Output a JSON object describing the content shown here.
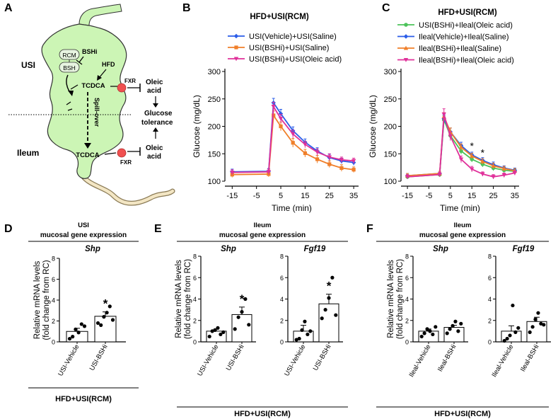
{
  "panels": {
    "A": {
      "letter": "A",
      "usi": "USI",
      "ileum": "Ileum",
      "rcm": "RCM",
      "bsh": "BSH",
      "bshi": "BSHi",
      "hfd": "HFD",
      "tcdca_top": "TCDCA",
      "tcdca_bottom": "TCDCA",
      "fxr_top": "FXR",
      "fxr_bottom": "FXR",
      "spill_over": "Spill-over",
      "oleic_top_1": "Oleic",
      "oleic_top_2": "acid",
      "glucose_1": "Glucose",
      "glucose_2": "tolerance",
      "oleic_bottom_1": "Oleic",
      "oleic_bottom_2": "acid",
      "colors": {
        "tissue": "#ccf5b5",
        "fxr": "#f05050",
        "tail": "#f3e6c4"
      }
    },
    "B": {
      "letter": "B"
    },
    "C": {
      "letter": "C"
    },
    "D": {
      "letter": "D",
      "head1": "USI",
      "head2": "mucosal gene expression",
      "footer": "HFD+USI(RCM)"
    },
    "E": {
      "letter": "E",
      "head1": "Ileum",
      "head2": "mucosal gene expression",
      "footer": "HFD+USI(RCM)"
    },
    "F": {
      "letter": "F",
      "head1": "Ileum",
      "head2": "mucosal gene expression",
      "footer": "HFD+USI(RCM)"
    }
  },
  "chart_data": [
    {
      "id": "B",
      "type": "line",
      "title": "HFD+USI(RCM)",
      "xlabel": "Time (min)",
      "ylabel": "Glucose (mg/dL)",
      "xlim": [
        -18,
        37
      ],
      "ylim": [
        100,
        300
      ],
      "xticks": [
        "-15",
        "-5",
        "5",
        "15",
        "25",
        "35"
      ],
      "xtick_values": [
        -15,
        -5,
        5,
        15,
        25,
        35
      ],
      "yticks": [
        "100",
        "150",
        "200",
        "250",
        "300"
      ],
      "ytick_values": [
        100,
        150,
        200,
        250,
        300
      ],
      "x": [
        -15,
        0,
        2,
        5,
        10,
        15,
        20,
        25,
        30,
        35
      ],
      "series": [
        {
          "name": "USI(Vehicle)+USI(Saline)",
          "color": "#2a5ce8",
          "marker": "diamond",
          "values": [
            117,
            118,
            243,
            223,
            192,
            171,
            155,
            143,
            137,
            134
          ],
          "errors": [
            5,
            5,
            8,
            8,
            7,
            6,
            6,
            6,
            5,
            5
          ]
        },
        {
          "name": "USI(BSHi)+USI(Saline)",
          "color": "#f07f2a",
          "marker": "square",
          "values": [
            112,
            113,
            220,
            200,
            170,
            151,
            140,
            131,
            124,
            121
          ],
          "errors": [
            5,
            5,
            8,
            8,
            8,
            7,
            7,
            6,
            6,
            5
          ]
        },
        {
          "name": "USI(BSHi)+USI(Oleic acid)",
          "color": "#e0309a",
          "marker": "triangle-down",
          "values": [
            116,
            117,
            236,
            214,
            186,
            167,
            153,
            144,
            139,
            137
          ],
          "errors": [
            5,
            5,
            8,
            8,
            7,
            6,
            6,
            6,
            5,
            5
          ]
        }
      ],
      "annotations": []
    },
    {
      "id": "C",
      "type": "line",
      "title": "HFD+USI(RCM)",
      "xlabel": "Time (min)",
      "ylabel": "Glucose (mg/dL)",
      "xlim": [
        -18,
        37
      ],
      "ylim": [
        100,
        300
      ],
      "xticks": [
        "-15",
        "-5",
        "5",
        "15",
        "25",
        "35"
      ],
      "xtick_values": [
        -15,
        -5,
        5,
        15,
        25,
        35
      ],
      "yticks": [
        "100",
        "150",
        "200",
        "250",
        "300"
      ],
      "ytick_values": [
        100,
        150,
        200,
        250,
        300
      ],
      "x": [
        -15,
        0,
        2,
        5,
        10,
        15,
        20,
        25,
        30,
        35
      ],
      "series": [
        {
          "name": "USI(BSHi)+Ileal(Oleic acid)",
          "color": "#4cc35a",
          "marker": "circle",
          "values": [
            108,
            112,
            212,
            183,
            155,
            140,
            131,
            124,
            120,
            118
          ],
          "errors": [
            4,
            4,
            7,
            7,
            6,
            5,
            5,
            5,
            4,
            4
          ]
        },
        {
          "name": "Ileal(Vehicle)+Ileal(Saline)",
          "color": "#2a5ce8",
          "marker": "diamond",
          "values": [
            110,
            114,
            214,
            190,
            165,
            148,
            138,
            130,
            124,
            120
          ],
          "errors": [
            4,
            4,
            7,
            7,
            6,
            5,
            5,
            5,
            4,
            4
          ]
        },
        {
          "name": "Ileal(BSHi)+Ileal(Saline)",
          "color": "#f07f2a",
          "marker": "triangle-up",
          "values": [
            110,
            114,
            218,
            190,
            162,
            146,
            136,
            128,
            123,
            119
          ],
          "errors": [
            4,
            4,
            7,
            7,
            6,
            5,
            5,
            5,
            4,
            4
          ]
        },
        {
          "name": "Ileal(BSHi)+Ileal(Oleic acid)",
          "color": "#e0309a",
          "marker": "triangle-down",
          "values": [
            108,
            112,
            222,
            182,
            140,
            122,
            113,
            108,
            111,
            115
          ],
          "errors": [
            4,
            4,
            10,
            8,
            6,
            5,
            4,
            4,
            4,
            4
          ]
        }
      ],
      "annotations": [
        {
          "text": "*",
          "x": 15,
          "y": 158
        },
        {
          "text": "*",
          "x": 20,
          "y": 146
        }
      ]
    },
    {
      "id": "D-Shp",
      "type": "bar",
      "title": "Shp",
      "ylabel": "Relative mRNA levels (fold change from RC)",
      "ylim": [
        0,
        8
      ],
      "yticks": [
        "0",
        "2",
        "4",
        "6",
        "8"
      ],
      "ytick_values": [
        0,
        2,
        4,
        6,
        8
      ],
      "categories": [
        "USI-Vehicle",
        "USI-BSHi"
      ],
      "values": [
        1.0,
        2.45
      ],
      "errors": [
        0.3,
        0.42
      ],
      "points": [
        [
          0.3,
          0.5,
          1.2,
          0.9,
          1.7,
          1.5
        ],
        [
          1.8,
          1.6,
          2.4,
          2.8,
          3.4,
          2.1
        ]
      ],
      "significance": [
        null,
        "*"
      ]
    },
    {
      "id": "E-Shp",
      "type": "bar",
      "title": "Shp",
      "ylabel": "Relative mRNA levels (fold change from RC)",
      "ylim": [
        0,
        8
      ],
      "yticks": [
        "0",
        "2",
        "4",
        "6",
        "8"
      ],
      "ytick_values": [
        0,
        2,
        4,
        6,
        8
      ],
      "categories": [
        "USI-Vehicle",
        "USI-BSHi"
      ],
      "values": [
        1.0,
        2.55
      ],
      "errors": [
        0.2,
        0.7
      ],
      "points": [
        [
          0.5,
          1.0,
          1.1,
          1.3,
          0.7,
          0.9
        ],
        [
          1.2,
          2.3,
          2.8,
          4.0,
          1.6
        ]
      ],
      "significance": [
        null,
        "*"
      ]
    },
    {
      "id": "E-Fgf19",
      "type": "bar",
      "title": "Fgf19",
      "ylabel": "",
      "ylim": [
        0,
        8
      ],
      "yticks": [
        "0",
        "2",
        "4",
        "6",
        "8"
      ],
      "ytick_values": [
        0,
        2,
        4,
        6,
        8
      ],
      "categories": [
        "USI-Vehicle",
        "USI-BSHi"
      ],
      "values": [
        1.0,
        3.55
      ],
      "errors": [
        0.55,
        0.9
      ],
      "points": [
        [
          0.2,
          0.3,
          1.1,
          1.9,
          0.7,
          1.0
        ],
        [
          2.2,
          3.0,
          4.1,
          6.0,
          2.5
        ]
      ],
      "significance": [
        null,
        "*"
      ]
    },
    {
      "id": "F-Shp",
      "type": "bar",
      "title": "Shp",
      "ylabel": "Relative mRNA levels (fold change from RC)",
      "ylim": [
        0,
        8
      ],
      "yticks": [
        "0",
        "2",
        "4",
        "6",
        "8"
      ],
      "ytick_values": [
        0,
        2,
        4,
        6,
        8
      ],
      "categories": [
        "Ileal-Vehicle",
        "Ileal-BSHi"
      ],
      "values": [
        1.0,
        1.35
      ],
      "errors": [
        0.2,
        0.2
      ],
      "points": [
        [
          0.5,
          0.8,
          1.2,
          1.0,
          0.7,
          1.4
        ],
        [
          0.8,
          1.2,
          1.5,
          1.9,
          1.0,
          1.7
        ]
      ],
      "significance": [
        null,
        null
      ]
    },
    {
      "id": "F-Fgf19",
      "type": "bar",
      "title": "Fgf19",
      "ylabel": "",
      "ylim": [
        0,
        8
      ],
      "yticks": [
        "0",
        "2",
        "4",
        "6",
        "8"
      ],
      "ytick_values": [
        0,
        2,
        4,
        6,
        8
      ],
      "categories": [
        "Ileal-Vehicle",
        "Ileal-BSHi"
      ],
      "values": [
        1.0,
        1.9
      ],
      "errors": [
        0.5,
        0.4
      ],
      "points": [
        [
          0.1,
          0.3,
          0.6,
          3.4,
          0.9,
          1.3
        ],
        [
          0.9,
          1.4,
          2.1,
          2.7,
          1.7,
          1.6
        ]
      ],
      "significance": [
        null,
        null
      ]
    }
  ]
}
